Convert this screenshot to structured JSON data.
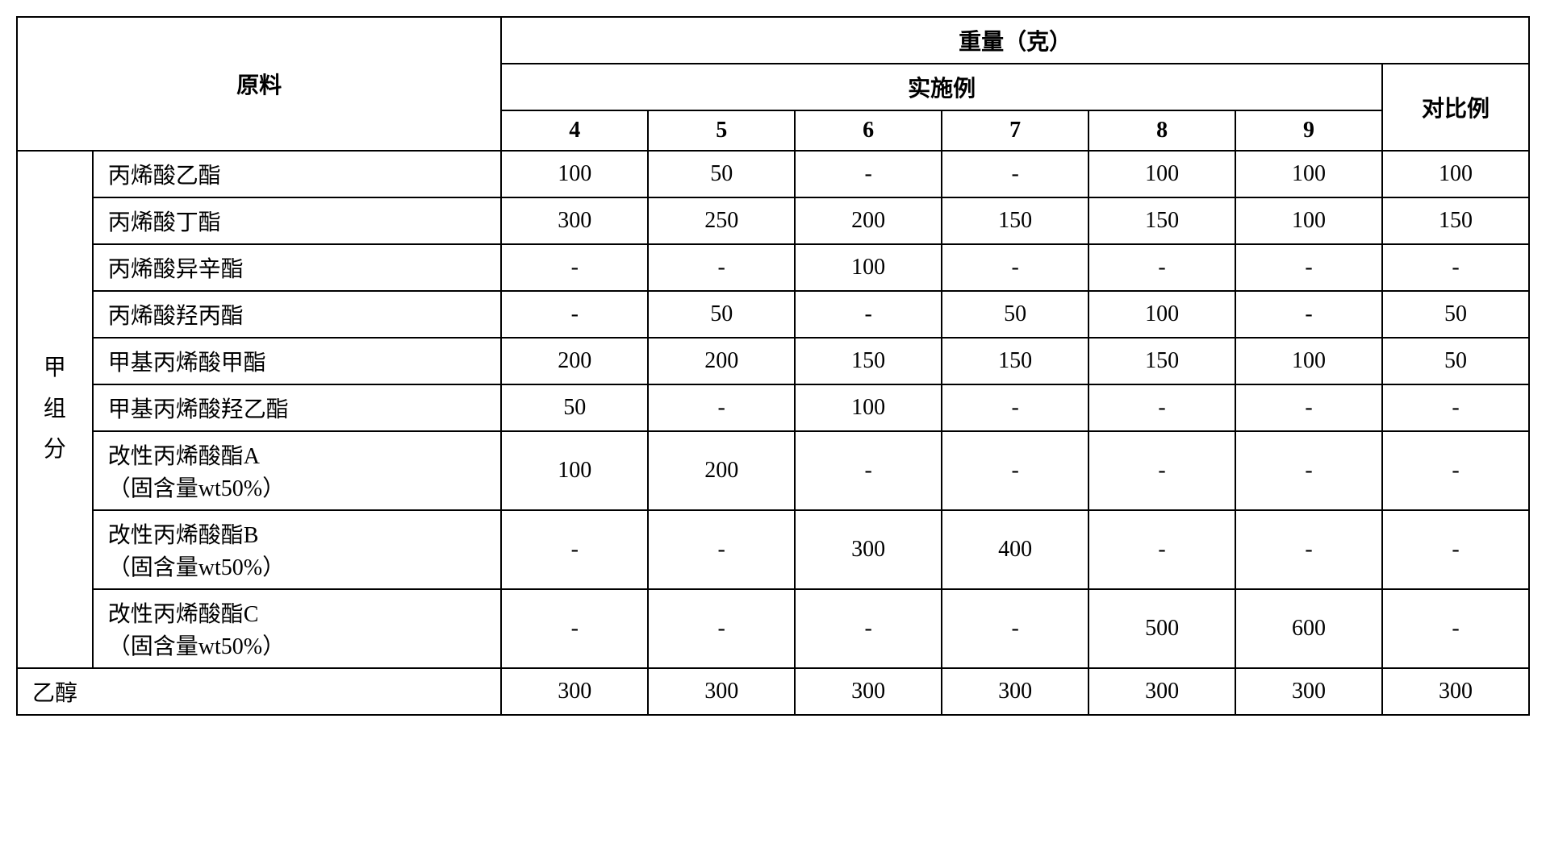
{
  "header": {
    "raw_material": "原料",
    "weight": "重量（克）",
    "embodiment": "实施例",
    "contrast": "对比例",
    "cols": [
      "4",
      "5",
      "6",
      "7",
      "8",
      "9"
    ]
  },
  "group_label": "甲组分",
  "rows": [
    {
      "label": "丙烯酸乙酯",
      "v": [
        "100",
        "50",
        "-",
        "-",
        "100",
        "100",
        "100"
      ]
    },
    {
      "label": "丙烯酸丁酯",
      "v": [
        "300",
        "250",
        "200",
        "150",
        "150",
        "100",
        "150"
      ]
    },
    {
      "label": "丙烯酸异辛酯",
      "v": [
        "-",
        "-",
        "100",
        "-",
        "-",
        "-",
        "-"
      ]
    },
    {
      "label": "丙烯酸羟丙酯",
      "v": [
        "-",
        "50",
        "-",
        "50",
        "100",
        "-",
        "50"
      ]
    },
    {
      "label": "甲基丙烯酸甲酯",
      "v": [
        "200",
        "200",
        "150",
        "150",
        "150",
        "100",
        "50"
      ]
    },
    {
      "label": "甲基丙烯酸羟乙酯",
      "v": [
        "50",
        "-",
        "100",
        "-",
        "-",
        "-",
        "-"
      ]
    },
    {
      "label": "改性丙烯酸酯A（固含量wt50%）",
      "v": [
        "100",
        "200",
        "-",
        "-",
        "-",
        "-",
        "-"
      ]
    },
    {
      "label": "改性丙烯酸酯B（固含量wt50%）",
      "v": [
        "-",
        "-",
        "300",
        "400",
        "-",
        "-",
        "-"
      ]
    },
    {
      "label": "改性丙烯酸酯C（固含量wt50%）",
      "v": [
        "-",
        "-",
        "-",
        "-",
        "500",
        "600",
        "-"
      ]
    }
  ],
  "final_row": {
    "label": "乙醇",
    "v": [
      "300",
      "300",
      "300",
      "300",
      "300",
      "300",
      "300"
    ]
  }
}
